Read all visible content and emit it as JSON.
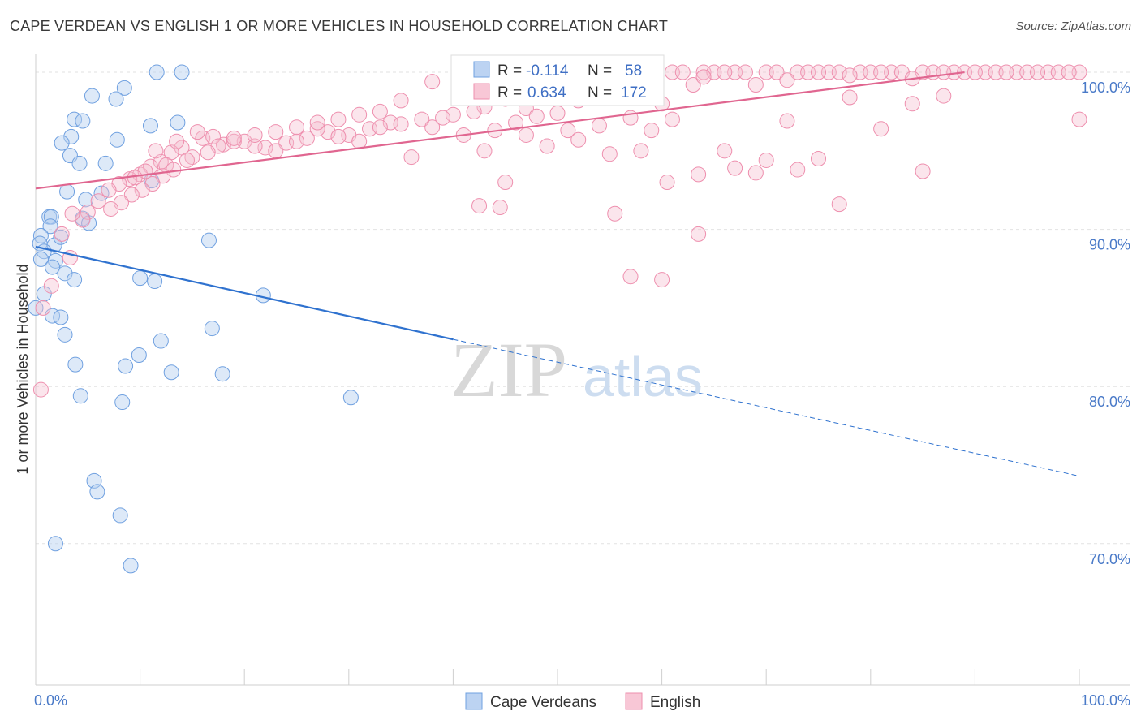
{
  "header": {
    "title": "CAPE VERDEAN VS ENGLISH 1 OR MORE VEHICLES IN HOUSEHOLD CORRELATION CHART",
    "source": "Source: ZipAtlas.com"
  },
  "watermark": {
    "zip": "ZIP",
    "atlas": "atlas"
  },
  "stats": {
    "r_label": "R =",
    "n_label": "N =",
    "rows": [
      {
        "r": "-0.114",
        "n": "58",
        "color": "#6fa0e0"
      },
      {
        "r": "0.634",
        "n": "172",
        "color": "#ee8fae"
      }
    ]
  },
  "chart_data": {
    "type": "scatter",
    "title": "CAPE VERDEAN VS ENGLISH 1 OR MORE VEHICLES IN HOUSEHOLD CORRELATION CHART",
    "ylabel": "1 or more Vehicles in Household",
    "xlim": [
      0,
      100
    ],
    "ylim": [
      61,
      101.5
    ],
    "x_tick_labels": [
      "0.0%",
      "100.0%"
    ],
    "y_ticks": [
      100,
      90,
      80,
      70
    ],
    "y_tick_labels": [
      "100.0%",
      "90.0%",
      "80.0%",
      "70.0%"
    ],
    "grid": true,
    "legend_position": "bottom",
    "series": [
      {
        "name": "Cape Verdeans",
        "color": "#6fa0e0",
        "points": [
          [
            11.6,
            100.0
          ],
          [
            14,
            100.0
          ],
          [
            8.5,
            99.0
          ],
          [
            5.4,
            98.5
          ],
          [
            7.7,
            98.3
          ],
          [
            3.7,
            97.0
          ],
          [
            4.5,
            96.9
          ],
          [
            11,
            96.6
          ],
          [
            13.6,
            96.8
          ],
          [
            3.4,
            95.9
          ],
          [
            7.8,
            95.7
          ],
          [
            2.5,
            95.5
          ],
          [
            3.3,
            94.7
          ],
          [
            4.2,
            94.2
          ],
          [
            6.7,
            94.2
          ],
          [
            11.1,
            93.1
          ],
          [
            3,
            92.4
          ],
          [
            6.3,
            92.3
          ],
          [
            4.8,
            91.9
          ],
          [
            1.3,
            90.8
          ],
          [
            1.5,
            90.8
          ],
          [
            4.5,
            90.7
          ],
          [
            5.1,
            90.4
          ],
          [
            1.4,
            90.2
          ],
          [
            0.5,
            89.6
          ],
          [
            0.4,
            89.1
          ],
          [
            1.8,
            89.0
          ],
          [
            2.4,
            89.5
          ],
          [
            16.6,
            89.3
          ],
          [
            0.8,
            88.6
          ],
          [
            0.5,
            88.1
          ],
          [
            1.9,
            88.0
          ],
          [
            1.6,
            87.6
          ],
          [
            2.8,
            87.2
          ],
          [
            3.7,
            86.8
          ],
          [
            10,
            86.9
          ],
          [
            11.4,
            86.7
          ],
          [
            0.8,
            85.9
          ],
          [
            21.8,
            85.8
          ],
          [
            0,
            85.0
          ],
          [
            1.6,
            84.5
          ],
          [
            2.4,
            84.4
          ],
          [
            16.9,
            83.7
          ],
          [
            2.8,
            83.3
          ],
          [
            12,
            82.9
          ],
          [
            3.8,
            81.4
          ],
          [
            8.6,
            81.3
          ],
          [
            9.9,
            82.0
          ],
          [
            13,
            80.9
          ],
          [
            17.9,
            80.8
          ],
          [
            4.3,
            79.4
          ],
          [
            8.3,
            79.0
          ],
          [
            30.2,
            79.3
          ],
          [
            5.6,
            74.0
          ],
          [
            5.9,
            73.3
          ],
          [
            8.1,
            71.8
          ],
          [
            1.9,
            70.0
          ],
          [
            9.1,
            68.6
          ]
        ],
        "trend": {
          "x": [
            0,
            40
          ],
          "y": [
            88.9,
            83.0
          ],
          "dashed_to": [
            100,
            74.3
          ]
        }
      },
      {
        "name": "English",
        "color": "#ee8fae",
        "points": [
          [
            55,
            100
          ],
          [
            58,
            100
          ],
          [
            61,
            100
          ],
          [
            64,
            100
          ],
          [
            67,
            100
          ],
          [
            70,
            100
          ],
          [
            73,
            100
          ],
          [
            76,
            100
          ],
          [
            79,
            100
          ],
          [
            82,
            100
          ],
          [
            85,
            100
          ],
          [
            88,
            100
          ],
          [
            91,
            100
          ],
          [
            94,
            100
          ],
          [
            97,
            100
          ],
          [
            100,
            100
          ],
          [
            62,
            100
          ],
          [
            68,
            100
          ],
          [
            74,
            100
          ],
          [
            80,
            100
          ],
          [
            86,
            100
          ],
          [
            92,
            100
          ],
          [
            98,
            100
          ],
          [
            59,
            100
          ],
          [
            65,
            100
          ],
          [
            71,
            100
          ],
          [
            77,
            100
          ],
          [
            83,
            100
          ],
          [
            89,
            100
          ],
          [
            95,
            100
          ],
          [
            53,
            99.5
          ],
          [
            57,
            99.6
          ],
          [
            63,
            99.2
          ],
          [
            49,
            98.5
          ],
          [
            52,
            98.2
          ],
          [
            56,
            98.4
          ],
          [
            60,
            98.0
          ],
          [
            45,
            98.3
          ],
          [
            47,
            97.7
          ],
          [
            43,
            97.8
          ],
          [
            40,
            97.3
          ],
          [
            37,
            97.0
          ],
          [
            34,
            96.8
          ],
          [
            32,
            96.4
          ],
          [
            30,
            96.0
          ],
          [
            28,
            96.2
          ],
          [
            26,
            95.8
          ],
          [
            24,
            95.5
          ],
          [
            22,
            95.2
          ],
          [
            20,
            95.6
          ],
          [
            18,
            95.4
          ],
          [
            16,
            95.8
          ],
          [
            14,
            95.2
          ],
          [
            13,
            94.9
          ],
          [
            12,
            94.3
          ],
          [
            11,
            94.0
          ],
          [
            10,
            93.5
          ],
          [
            9,
            93.2
          ],
          [
            8,
            92.9
          ],
          [
            7,
            92.5
          ],
          [
            6,
            91.8
          ],
          [
            5,
            91.1
          ],
          [
            4.5,
            90.6
          ],
          [
            3.5,
            91.0
          ],
          [
            2.5,
            89.7
          ],
          [
            3.3,
            88.2
          ],
          [
            1.5,
            86.4
          ],
          [
            0.7,
            85.0
          ],
          [
            0.5,
            79.8
          ],
          [
            17,
            95.9
          ],
          [
            19,
            95.6
          ],
          [
            21,
            95.3
          ],
          [
            23,
            95.0
          ],
          [
            25,
            95.6
          ],
          [
            27,
            96.4
          ],
          [
            29,
            95.9
          ],
          [
            31,
            95.6
          ],
          [
            33,
            96.5
          ],
          [
            35,
            96.7
          ],
          [
            38,
            96.5
          ],
          [
            41,
            96.0
          ],
          [
            44,
            96.3
          ],
          [
            46,
            96.8
          ],
          [
            48,
            97.2
          ],
          [
            50,
            97.4
          ],
          [
            15,
            94.6
          ],
          [
            12.5,
            94.1
          ],
          [
            10.5,
            93.7
          ],
          [
            9.5,
            93.3
          ],
          [
            11.5,
            95.0
          ],
          [
            13.5,
            95.6
          ],
          [
            15.5,
            96.2
          ],
          [
            36,
            94.6
          ],
          [
            39,
            97.1
          ],
          [
            42,
            97.5
          ],
          [
            51,
            96.3
          ],
          [
            54,
            96.6
          ],
          [
            57,
            97.1
          ],
          [
            59,
            96.3
          ],
          [
            61,
            97.0
          ],
          [
            66,
            95.0
          ],
          [
            69,
            93.6
          ],
          [
            72,
            96.9
          ],
          [
            75,
            94.5
          ],
          [
            78,
            98.4
          ],
          [
            81,
            96.4
          ],
          [
            84,
            98.0
          ],
          [
            87,
            98.5
          ],
          [
            43,
            95.0
          ],
          [
            47,
            96.0
          ],
          [
            49,
            95.3
          ],
          [
            52,
            95.7
          ],
          [
            55,
            94.8
          ],
          [
            58,
            95.0
          ],
          [
            60.5,
            93.0
          ],
          [
            63.5,
            93.5
          ],
          [
            67,
            93.9
          ],
          [
            70,
            94.4
          ],
          [
            73,
            93.8
          ],
          [
            77,
            91.6
          ],
          [
            85,
            93.7
          ],
          [
            45,
            93.0
          ],
          [
            42.5,
            91.5
          ],
          [
            44.5,
            91.4
          ],
          [
            55.5,
            91.0
          ],
          [
            63.5,
            89.7
          ],
          [
            57,
            87.0
          ],
          [
            60,
            86.8
          ],
          [
            64,
            99.7
          ],
          [
            66,
            100
          ],
          [
            69,
            99.2
          ],
          [
            72,
            99.5
          ],
          [
            75,
            100
          ],
          [
            78,
            99.8
          ],
          [
            81,
            100
          ],
          [
            84,
            99.6
          ],
          [
            87,
            100
          ],
          [
            90,
            100
          ],
          [
            93,
            100
          ],
          [
            96,
            100
          ],
          [
            99,
            100
          ],
          [
            100,
            97.0
          ],
          [
            45,
            99
          ],
          [
            48,
            99.3
          ],
          [
            50,
            99.6
          ],
          [
            53,
            99.0
          ],
          [
            47,
            100
          ],
          [
            55,
            100.5
          ],
          [
            41,
            100
          ],
          [
            38,
            99.4
          ],
          [
            35,
            98.2
          ],
          [
            33,
            97.5
          ],
          [
            31,
            97.3
          ],
          [
            29,
            97.0
          ],
          [
            27,
            96.8
          ],
          [
            25,
            96.5
          ],
          [
            23,
            96.2
          ],
          [
            21,
            96.0
          ],
          [
            19,
            95.8
          ],
          [
            17.5,
            95.3
          ],
          [
            16.5,
            94.9
          ],
          [
            14.5,
            94.4
          ],
          [
            13.2,
            93.8
          ],
          [
            12.2,
            93.4
          ],
          [
            11.2,
            92.9
          ],
          [
            10.2,
            92.5
          ],
          [
            9.2,
            92.2
          ],
          [
            8.2,
            91.7
          ],
          [
            7.2,
            91.3
          ]
        ],
        "trend": {
          "x": [
            0,
            89
          ],
          "y": [
            92.6,
            100.0
          ]
        }
      }
    ]
  }
}
